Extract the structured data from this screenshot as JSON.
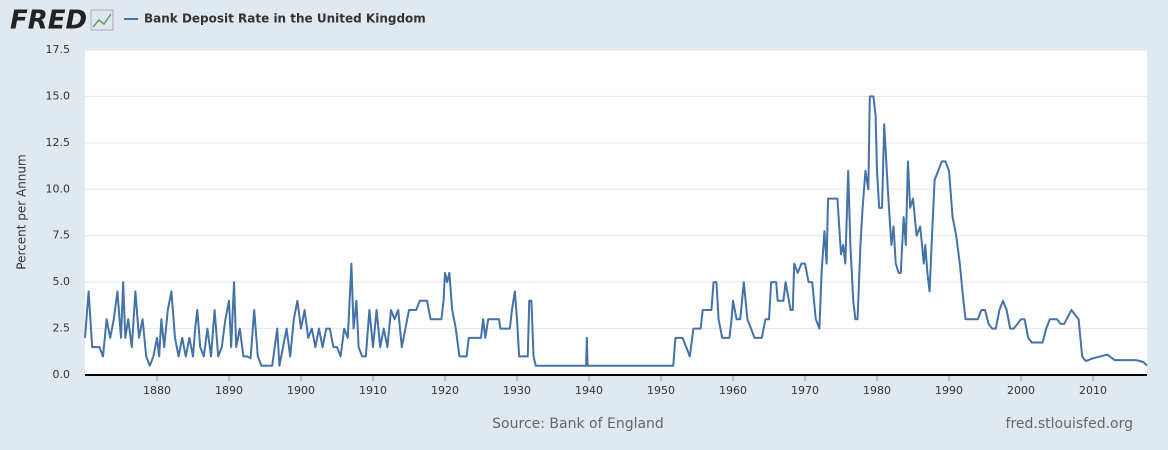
{
  "chart_data": {
    "type": "line",
    "logo": "FRED",
    "y_label": "Percent per Annum",
    "source": "Source: Bank of England",
    "site": "fred.stlouisfed.org",
    "x": [
      1870,
      1870.5,
      1871,
      1872,
      1872.5,
      1873,
      1873.5,
      1874,
      1874.5,
      1875,
      1875.3,
      1875.6,
      1876,
      1876.5,
      1877,
      1877.5,
      1878,
      1878.5,
      1879,
      1879.5,
      1880,
      1880.3,
      1880.6,
      1881,
      1881.5,
      1882,
      1882.5,
      1883,
      1883.5,
      1884,
      1884.5,
      1885,
      1885.3,
      1885.6,
      1886,
      1886.5,
      1887,
      1887.5,
      1888,
      1888.5,
      1889,
      1889.5,
      1890,
      1890.3,
      1890.7,
      1891,
      1891.5,
      1892,
      1892.5,
      1893,
      1893.5,
      1894,
      1894.5,
      1896,
      1896.7,
      1897,
      1897.5,
      1898,
      1898.5,
      1899,
      1899.5,
      1900,
      1900.5,
      1901,
      1901.5,
      1902,
      1902.5,
      1903,
      1903.5,
      1904,
      1904.5,
      1905,
      1905.5,
      1906,
      1906.5,
      1907,
      1907.3,
      1907.7,
      1908,
      1908.5,
      1909,
      1909.5,
      1910,
      1910.5,
      1911,
      1911.5,
      1912,
      1912.5,
      1913,
      1913.5,
      1914,
      1914.5,
      1915,
      1916,
      1916.5,
      1917.5,
      1918,
      1919.5,
      1919.8,
      1920,
      1920.3,
      1920.6,
      1921,
      1921.5,
      1922,
      1923,
      1923.3,
      1925,
      1925.3,
      1925.6,
      1926,
      1927.5,
      1927.7,
      1929,
      1929.3,
      1929.7,
      1930,
      1930.3,
      1931.5,
      1931.7,
      1932,
      1932.3,
      1932.6,
      1939.6,
      1939.7,
      1939.8,
      1951.7,
      1952,
      1953,
      1953.5,
      1954,
      1954.5,
      1955.5,
      1955.8,
      1957,
      1957.3,
      1957.7,
      1958,
      1958.5,
      1959.5,
      1959.8,
      1960,
      1960.5,
      1961,
      1961.5,
      1962,
      1963,
      1964,
      1964.5,
      1965,
      1965.3,
      1966,
      1966.2,
      1967,
      1967.3,
      1968,
      1968.3,
      1968.5,
      1969,
      1969.5,
      1970,
      1970.5,
      1971,
      1971.5,
      1972,
      1972.3,
      1972.7,
      1973,
      1973.2,
      1974.5,
      1975,
      1975.3,
      1975.6,
      1976,
      1976.3,
      1976.7,
      1977,
      1977.3,
      1977.7,
      1978,
      1978.4,
      1978.8,
      1979,
      1979.5,
      1979.8,
      1980,
      1980.3,
      1980.7,
      1981,
      1981.5,
      1982,
      1982.3,
      1982.6,
      1983,
      1983.3,
      1983.7,
      1984,
      1984.3,
      1984.6,
      1985,
      1985.5,
      1986,
      1986.5,
      1986.7,
      1987,
      1987.3,
      1987.7,
      1988,
      1988.5,
      1989,
      1989.5,
      1990,
      1990.5,
      1991,
      1991.5,
      1992,
      1992.3,
      1993,
      1993.5,
      1994,
      1994.5,
      1995,
      1995.5,
      1996,
      1996.5,
      1997,
      1997.5,
      1998,
      1998.5,
      1999,
      2000,
      2000.5,
      2001,
      2001.5,
      2002,
      2003,
      2003.5,
      2004,
      2005,
      2005.5,
      2006,
      2007,
      2008,
      2008.5,
      2009,
      2010,
      2011,
      2012,
      2013,
      2014,
      2015,
      2016,
      2017,
      2017.5
    ],
    "series": [
      {
        "name": "Bank Deposit Rate in the United Kingdom",
        "color": "#4572a7",
        "values": [
          2,
          4.5,
          1.5,
          1.5,
          1,
          3,
          2,
          3,
          4.5,
          2,
          5,
          2,
          3,
          1.5,
          4.5,
          2,
          3,
          1,
          0.5,
          1,
          2,
          1,
          3,
          1.5,
          3.5,
          4.5,
          2,
          1,
          2,
          1,
          2,
          1,
          2.5,
          3.5,
          1.5,
          1,
          2.5,
          1,
          3.5,
          1,
          1.5,
          3,
          4,
          1.5,
          5,
          1.5,
          2.5,
          1,
          1,
          0.9,
          3.5,
          1,
          0.5,
          0.5,
          2.5,
          0.5,
          1.5,
          2.5,
          1,
          3,
          4,
          2.5,
          3.5,
          2,
          2.5,
          1.5,
          2.5,
          1.5,
          2.5,
          2.5,
          1.5,
          1.5,
          1,
          2.5,
          2,
          6,
          2.5,
          4,
          1.5,
          1,
          1,
          3.5,
          1.5,
          3.5,
          1.5,
          2.5,
          1.5,
          3.5,
          3,
          3.5,
          1.5,
          2.5,
          3.5,
          3.5,
          4,
          4,
          3,
          3,
          4,
          5.5,
          5,
          5.5,
          3.5,
          2.5,
          1,
          1,
          2,
          2,
          3,
          2,
          3,
          3,
          2.5,
          2.5,
          3.5,
          4.5,
          3,
          1,
          1,
          4,
          4,
          1,
          0.5,
          0.5,
          2,
          0.5,
          0.5,
          2,
          2,
          1.5,
          1,
          2.5,
          2.5,
          3.5,
          3.5,
          5,
          5,
          3,
          2,
          2,
          3,
          4,
          3,
          3,
          5,
          3,
          2,
          2,
          3,
          3,
          5,
          5,
          4,
          4,
          5,
          3.5,
          3.5,
          6,
          5.5,
          6,
          6,
          5,
          5,
          3,
          2.5,
          5.5,
          7.75,
          6,
          9.5,
          9.5,
          6.5,
          7,
          6,
          11,
          7,
          4,
          3,
          3,
          7,
          9,
          11,
          10,
          15,
          15,
          14,
          11,
          9,
          9,
          13.5,
          10,
          7,
          8,
          6,
          5.5,
          5.5,
          8.5,
          7,
          11.5,
          9,
          9.5,
          7.5,
          8,
          6,
          7,
          5.5,
          4.5,
          8,
          10.5,
          11,
          11.5,
          11.5,
          11,
          8.5,
          7.5,
          6,
          4,
          3,
          3,
          3,
          3,
          3.5,
          3.5,
          2.75,
          2.5,
          2.5,
          3.5,
          4,
          3.5,
          2.5,
          2.5,
          3,
          3,
          2,
          1.75,
          1.75,
          1.75,
          2.5,
          3,
          3,
          2.75,
          2.75,
          3.5,
          3,
          1,
          0.75,
          0.9,
          1,
          1.1,
          0.8,
          0.8,
          0.8,
          0.8,
          0.7,
          0.5
        ]
      }
    ],
    "xlim": [
      1870,
      2017.5
    ],
    "xticks": [
      1880,
      1890,
      1900,
      1910,
      1920,
      1930,
      1940,
      1950,
      1960,
      1970,
      1980,
      1990,
      2000,
      2010
    ],
    "ylim": [
      0,
      17.5
    ],
    "yticks": [
      {
        "value": 0,
        "label": "0.0"
      },
      2.5,
      {
        "value": 5,
        "label": "5.0"
      },
      7.5,
      {
        "value": 10,
        "label": "10.0"
      },
      12.5,
      {
        "value": 15,
        "label": "15.0"
      },
      17.5
    ],
    "grid": true
  }
}
